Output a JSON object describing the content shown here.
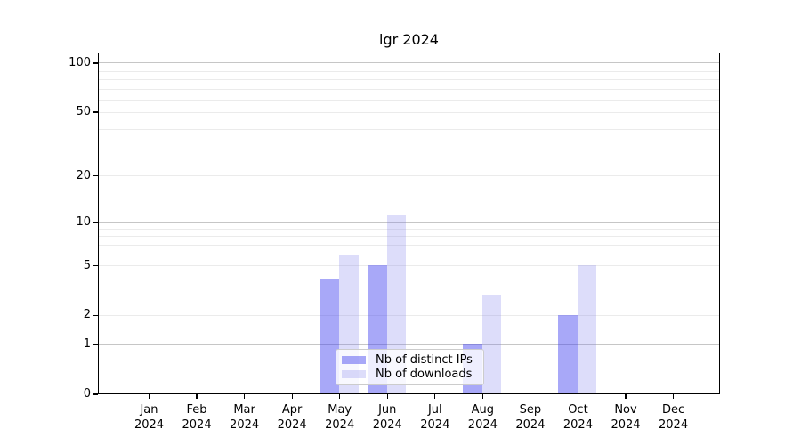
{
  "window": {
    "title": "lgr 2024"
  },
  "chart_data": {
    "type": "bar",
    "title": "lgr 2024",
    "months": [
      "Jan",
      "Feb",
      "Mar",
      "Apr",
      "May",
      "Jun",
      "Jul",
      "Aug",
      "Sep",
      "Oct",
      "Nov",
      "Dec"
    ],
    "year": "2024",
    "categories": [
      "Jan 2024",
      "Feb 2024",
      "Mar 2024",
      "Apr 2024",
      "May 2024",
      "Jun 2024",
      "Jul 2024",
      "Aug 2024",
      "Sep 2024",
      "Oct 2024",
      "Nov 2024",
      "Dec 2024"
    ],
    "series": [
      {
        "name": "Nb of distinct IPs",
        "values": [
          0,
          0,
          0,
          0,
          4,
          5,
          0,
          1,
          0,
          2,
          0,
          0
        ],
        "color": "rgba(62,62,239,0.45)",
        "color_on_white_hex": "#a8a8f8"
      },
      {
        "name": "Nb of downloads",
        "values": [
          0,
          0,
          0,
          0,
          6,
          11,
          0,
          3,
          0,
          5,
          0,
          0
        ],
        "color": "rgba(119,119,235,0.25)",
        "color_on_white_hex": "#dddcfa"
      }
    ],
    "xlabel": "",
    "ylabel": "",
    "y_ticks": [
      0,
      1,
      2,
      5,
      10,
      20,
      50,
      100
    ],
    "y_scale": "log10(1+v)",
    "ylim": [
      0,
      116
    ],
    "grid": {
      "major_values": [
        1,
        10,
        100
      ],
      "minor_values": [
        2,
        3,
        4,
        5,
        6,
        7,
        8,
        9,
        20,
        29,
        39,
        50,
        59,
        69,
        79,
        89
      ],
      "major_color": "#c6c6c6",
      "minor_color": "#ebebeb"
    },
    "legend": {
      "position": "lower center",
      "entries": [
        "Nb of distinct IPs",
        "Nb of downloads"
      ]
    },
    "axis_color": "#000000",
    "background_color": "#ffffff"
  }
}
